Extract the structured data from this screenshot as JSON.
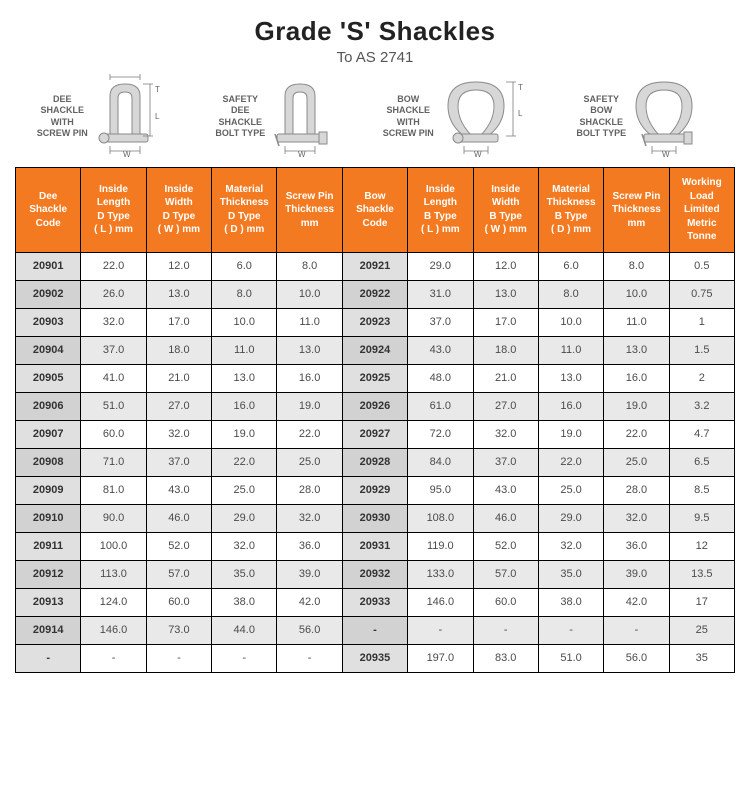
{
  "title": "Grade 'S' Shackles",
  "subtitle": "To AS 2741",
  "diagrams": [
    {
      "label": "DEE\nSHACKLE\nWITH\nSCREW PIN"
    },
    {
      "label": "SAFETY\nDEE\nSHACKLE\nBOLT TYPE"
    },
    {
      "label": "BOW\nSHACKLE\nWITH\nSCREW PIN"
    },
    {
      "label": "SAFETY\nBOW\nSHACKLE\nBOLT TYPE"
    }
  ],
  "columns": [
    "Dee\nShackle\nCode",
    "Inside\nLength\nD Type\n( L ) mm",
    "Inside\nWidth\nD Type\n( W ) mm",
    "Material\nThickness\nD Type\n( D ) mm",
    "Screw Pin\nThickness\nmm",
    "Bow\nShackle\nCode",
    "Inside\nLength\nB Type\n( L ) mm",
    "Inside\nWidth\nB Type\n( W ) mm",
    "Material\nThickness\nB Type\n( D ) mm",
    "Screw Pin\nThickness\nmm",
    "Working\nLoad Limited\nMetric Tonne"
  ],
  "rows": [
    [
      "20901",
      "22.0",
      "12.0",
      "6.0",
      "8.0",
      "20921",
      "29.0",
      "12.0",
      "6.0",
      "8.0",
      "0.5"
    ],
    [
      "20902",
      "26.0",
      "13.0",
      "8.0",
      "10.0",
      "20922",
      "31.0",
      "13.0",
      "8.0",
      "10.0",
      "0.75"
    ],
    [
      "20903",
      "32.0",
      "17.0",
      "10.0",
      "11.0",
      "20923",
      "37.0",
      "17.0",
      "10.0",
      "11.0",
      "1"
    ],
    [
      "20904",
      "37.0",
      "18.0",
      "11.0",
      "13.0",
      "20924",
      "43.0",
      "18.0",
      "11.0",
      "13.0",
      "1.5"
    ],
    [
      "20905",
      "41.0",
      "21.0",
      "13.0",
      "16.0",
      "20925",
      "48.0",
      "21.0",
      "13.0",
      "16.0",
      "2"
    ],
    [
      "20906",
      "51.0",
      "27.0",
      "16.0",
      "19.0",
      "20926",
      "61.0",
      "27.0",
      "16.0",
      "19.0",
      "3.2"
    ],
    [
      "20907",
      "60.0",
      "32.0",
      "19.0",
      "22.0",
      "20927",
      "72.0",
      "32.0",
      "19.0",
      "22.0",
      "4.7"
    ],
    [
      "20908",
      "71.0",
      "37.0",
      "22.0",
      "25.0",
      "20928",
      "84.0",
      "37.0",
      "22.0",
      "25.0",
      "6.5"
    ],
    [
      "20909",
      "81.0",
      "43.0",
      "25.0",
      "28.0",
      "20929",
      "95.0",
      "43.0",
      "25.0",
      "28.0",
      "8.5"
    ],
    [
      "20910",
      "90.0",
      "46.0",
      "29.0",
      "32.0",
      "20930",
      "108.0",
      "46.0",
      "29.0",
      "32.0",
      "9.5"
    ],
    [
      "20911",
      "100.0",
      "52.0",
      "32.0",
      "36.0",
      "20931",
      "119.0",
      "52.0",
      "32.0",
      "36.0",
      "12"
    ],
    [
      "20912",
      "113.0",
      "57.0",
      "35.0",
      "39.0",
      "20932",
      "133.0",
      "57.0",
      "35.0",
      "39.0",
      "13.5"
    ],
    [
      "20913",
      "124.0",
      "60.0",
      "38.0",
      "42.0",
      "20933",
      "146.0",
      "60.0",
      "38.0",
      "42.0",
      "17"
    ],
    [
      "20914",
      "146.0",
      "73.0",
      "44.0",
      "56.0",
      "-",
      "-",
      "-",
      "-",
      "-",
      "25"
    ],
    [
      "-",
      "-",
      "-",
      "-",
      "-",
      "20935",
      "197.0",
      "83.0",
      "51.0",
      "56.0",
      "35"
    ]
  ],
  "style": {
    "header_bg": "#f37a20",
    "header_fg": "#ffffff",
    "row_odd_bg": "#ffffff",
    "row_even_bg": "#e9e9e9",
    "code_bg": "#e0e0e0",
    "border_color": "#000000",
    "text_color": "#4b4b4b",
    "title_fontsize": 26,
    "header_fontsize": 10,
    "cell_fontsize": 11
  }
}
